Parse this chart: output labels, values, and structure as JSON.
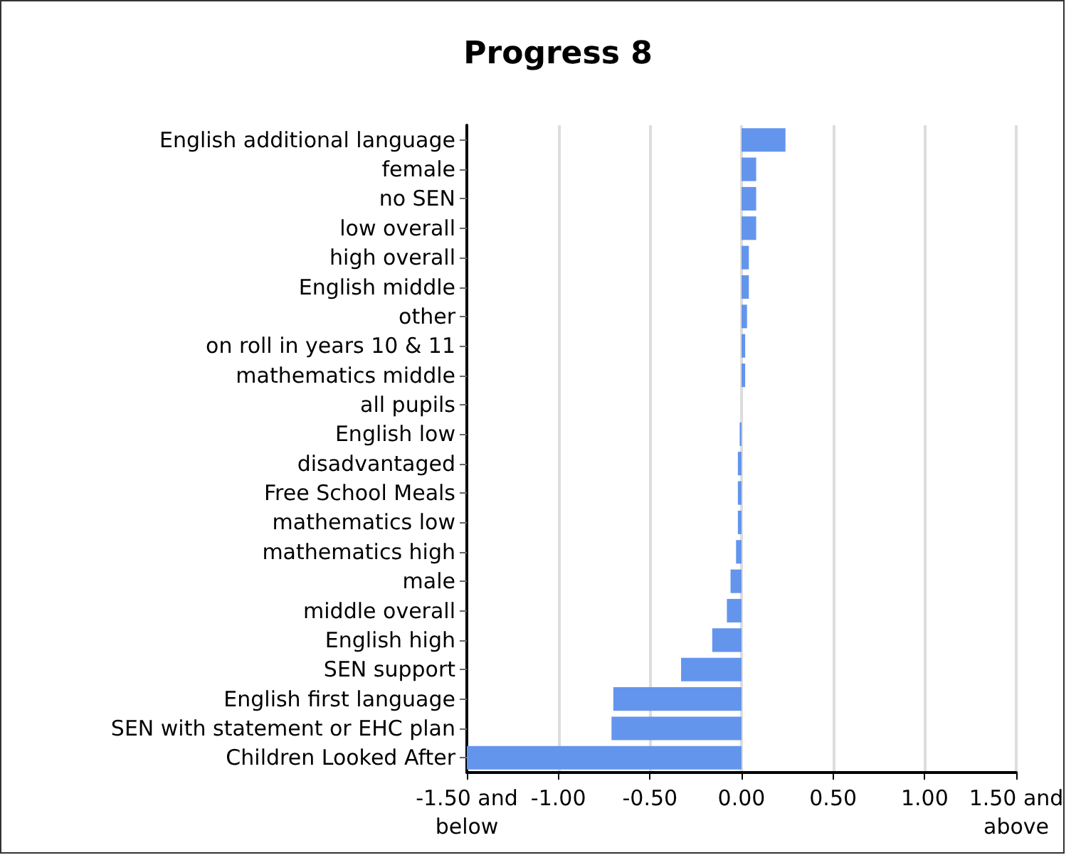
{
  "chart_data": {
    "type": "bar",
    "orientation": "horizontal",
    "title": "Progress 8",
    "categories": [
      "English additional language",
      "female",
      "no SEN",
      "low overall",
      "high overall",
      "English middle",
      "other",
      "on roll in years 10 & 11",
      "mathematics middle",
      "all pupils",
      "English low",
      "disadvantaged",
      "Free School Meals",
      "mathematics low",
      "mathematics high",
      "male",
      "middle overall",
      "English high",
      "SEN support",
      "English first language",
      "SEN with statement or EHC plan",
      "Children Looked After"
    ],
    "values": [
      0.24,
      0.08,
      0.08,
      0.08,
      0.04,
      0.04,
      0.03,
      0.02,
      0.02,
      0,
      -0.01,
      -0.02,
      -0.02,
      -0.02,
      -0.03,
      -0.06,
      -0.08,
      -0.16,
      -0.33,
      -0.7,
      -0.71,
      -1.5
    ],
    "color": "#6495ed",
    "xlim": [
      -1.5,
      1.5
    ],
    "xticks": [
      {
        "value": -1.5,
        "label": "-1.50 and below"
      },
      {
        "value": -1,
        "label": "-1.00"
      },
      {
        "value": -0.5,
        "label": "-0.50"
      },
      {
        "value": 0,
        "label": "0.00"
      },
      {
        "value": 0.5,
        "label": "0.50"
      },
      {
        "value": 1,
        "label": "1.00"
      },
      {
        "value": 1.5,
        "label": "1.50 and above"
      }
    ],
    "grid": "x"
  }
}
